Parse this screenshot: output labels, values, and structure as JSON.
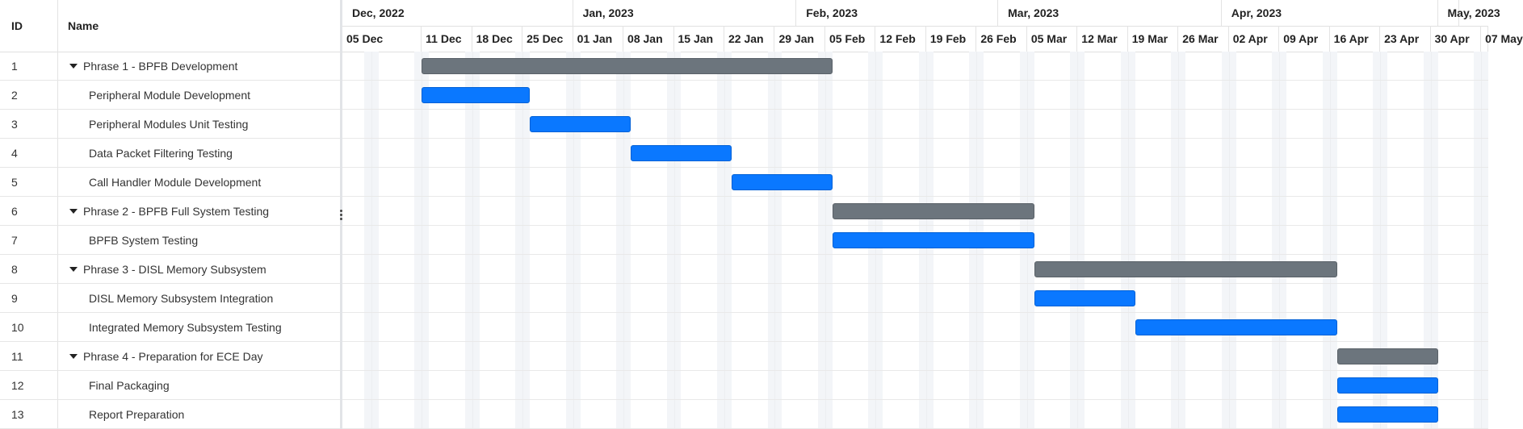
{
  "grid": {
    "columns": {
      "id": "ID",
      "name": "Name"
    },
    "rows": [
      {
        "id": "1",
        "name": "Phrase 1 - BPFB Development",
        "level": 0,
        "expandable": true
      },
      {
        "id": "2",
        "name": "Peripheral Module Development",
        "level": 1,
        "expandable": false
      },
      {
        "id": "3",
        "name": "Peripheral Modules Unit Testing",
        "level": 1,
        "expandable": false
      },
      {
        "id": "4",
        "name": "Data Packet Filtering Testing",
        "level": 1,
        "expandable": false
      },
      {
        "id": "5",
        "name": "Call Handler Module Development",
        "level": 1,
        "expandable": false
      },
      {
        "id": "6",
        "name": "Phrase 2 - BPFB Full System Testing",
        "level": 0,
        "expandable": true
      },
      {
        "id": "7",
        "name": "BPFB System Testing",
        "level": 1,
        "expandable": false
      },
      {
        "id": "8",
        "name": "Phrase 3 - DISL Memory Subsystem",
        "level": 0,
        "expandable": true
      },
      {
        "id": "9",
        "name": "DISL Memory Subsystem Integration",
        "level": 1,
        "expandable": false
      },
      {
        "id": "10",
        "name": "Integrated Memory Subsystem Testing",
        "level": 1,
        "expandable": false
      },
      {
        "id": "11",
        "name": "Phrase 4 - Preparation for ECE Day",
        "level": 0,
        "expandable": true
      },
      {
        "id": "12",
        "name": "Final Packaging",
        "level": 1,
        "expandable": false
      },
      {
        "id": "13",
        "name": "Report Preparation",
        "level": 1,
        "expandable": false
      }
    ]
  },
  "timeline": {
    "months": [
      {
        "label": "Dec, 2022",
        "start": "2022-11-30",
        "end": "2023-01-01"
      },
      {
        "label": "Jan, 2023",
        "start": "2023-01-01",
        "end": "2023-02-01"
      },
      {
        "label": "Feb, 2023",
        "start": "2023-02-01",
        "end": "2023-03-01"
      },
      {
        "label": "Mar, 2023",
        "start": "2023-03-01",
        "end": "2023-04-01"
      },
      {
        "label": "Apr, 2023",
        "start": "2023-04-01",
        "end": "2023-05-01"
      },
      {
        "label": "May, 2023",
        "start": "2023-05-01",
        "end": "2023-05-04"
      }
    ],
    "weeks": [
      {
        "label": "05 Dec",
        "start": "2022-11-30"
      },
      {
        "label": "11 Dec",
        "start": "2022-12-11"
      },
      {
        "label": "18 Dec",
        "start": "2022-12-18"
      },
      {
        "label": "25 Dec",
        "start": "2022-12-25"
      },
      {
        "label": "01 Jan",
        "start": "2023-01-01"
      },
      {
        "label": "08 Jan",
        "start": "2023-01-08"
      },
      {
        "label": "15 Jan",
        "start": "2023-01-15"
      },
      {
        "label": "22 Jan",
        "start": "2023-01-22"
      },
      {
        "label": "29 Jan",
        "start": "2023-01-29"
      },
      {
        "label": "05 Feb",
        "start": "2023-02-05"
      },
      {
        "label": "12 Feb",
        "start": "2023-02-12"
      },
      {
        "label": "19 Feb",
        "start": "2023-02-19"
      },
      {
        "label": "26 Feb",
        "start": "2023-02-26"
      },
      {
        "label": "05 Mar",
        "start": "2023-03-05"
      },
      {
        "label": "12 Mar",
        "start": "2023-03-12"
      },
      {
        "label": "19 Mar",
        "start": "2023-03-19"
      },
      {
        "label": "26 Mar",
        "start": "2023-03-26"
      },
      {
        "label": "02 Apr",
        "start": "2023-04-02"
      },
      {
        "label": "09 Apr",
        "start": "2023-04-09"
      },
      {
        "label": "16 Apr",
        "start": "2023-04-16"
      },
      {
        "label": "23 Apr",
        "start": "2023-04-23"
      },
      {
        "label": "30 Apr",
        "start": "2023-04-30"
      },
      {
        "label": "07 May",
        "start": "2023-05-07"
      }
    ],
    "view_start": "2022-11-30",
    "view_end": "2023-05-08"
  },
  "tasks": [
    {
      "id": "1",
      "type": "summary",
      "start": "2022-12-11",
      "end": "2023-02-06"
    },
    {
      "id": "2",
      "type": "task",
      "start": "2022-12-11",
      "end": "2022-12-26"
    },
    {
      "id": "3",
      "type": "task",
      "start": "2022-12-26",
      "end": "2023-01-09"
    },
    {
      "id": "4",
      "type": "task",
      "start": "2023-01-09",
      "end": "2023-01-23"
    },
    {
      "id": "5",
      "type": "task",
      "start": "2023-01-23",
      "end": "2023-02-06"
    },
    {
      "id": "6",
      "type": "summary",
      "start": "2023-02-06",
      "end": "2023-03-06"
    },
    {
      "id": "7",
      "type": "task",
      "start": "2023-02-06",
      "end": "2023-03-06"
    },
    {
      "id": "8",
      "type": "summary",
      "start": "2023-03-06",
      "end": "2023-04-17"
    },
    {
      "id": "9",
      "type": "task",
      "start": "2023-03-06",
      "end": "2023-03-20"
    },
    {
      "id": "10",
      "type": "task",
      "start": "2023-03-20",
      "end": "2023-04-17"
    },
    {
      "id": "11",
      "type": "summary",
      "start": "2023-04-17",
      "end": "2023-05-01"
    },
    {
      "id": "12",
      "type": "task",
      "start": "2023-04-17",
      "end": "2023-05-01"
    },
    {
      "id": "13",
      "type": "task",
      "start": "2023-04-17",
      "end": "2023-05-01"
    }
  ],
  "colors": {
    "summary": "#6c757d",
    "task": "#0a78ff",
    "weekend": "#f3f5f8",
    "grid_line": "#e6e6e6"
  }
}
